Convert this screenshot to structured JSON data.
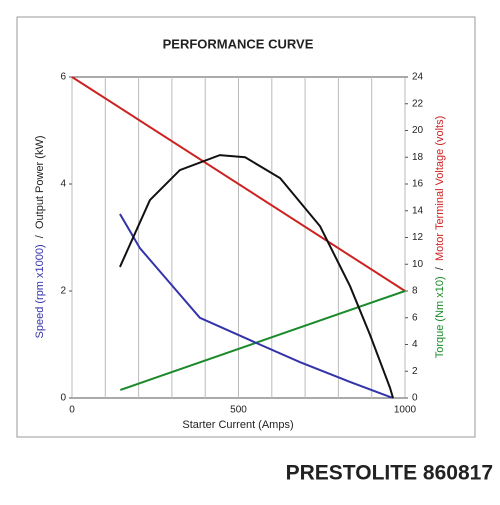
{
  "chart_data": {
    "type": "line",
    "title": "PERFORMANCE CURVE",
    "xlabel": "Starter Current (Amps)",
    "ylabel_parts": [
      {
        "text": "Speed (rpm x1000)",
        "color": "#3333aa"
      },
      {
        "text": "/",
        "color": "#222222"
      },
      {
        "text": "Output Power (kW)",
        "color": "#222222"
      }
    ],
    "y2label_parts": [
      {
        "text": "Torque (Nm x10)",
        "color": "#1a8a2a"
      },
      {
        "text": "/",
        "color": "#222222"
      },
      {
        "text": "Motor Terminal Voltage (volts)",
        "color": "#cc2222"
      }
    ],
    "xlim": [
      0,
      1000
    ],
    "xticks": [
      0,
      500,
      1000
    ],
    "minor_xticks": [
      100,
      200,
      300,
      400,
      600,
      700,
      800,
      900
    ],
    "ylim": [
      0,
      6
    ],
    "yticks": [
      0,
      2,
      4,
      6
    ],
    "y2lim": [
      0,
      24
    ],
    "y2ticks": [
      0,
      2,
      4,
      6,
      8,
      10,
      12,
      14,
      16,
      18,
      20,
      22,
      24
    ],
    "series": [
      {
        "color": "#cc2222",
        "axis": "y2",
        "x": [
          0,
          1000
        ],
        "values": [
          24,
          8
        ]
      },
      {
        "color": "#1a8a2a",
        "axis": "y2",
        "x": [
          145,
          1000
        ],
        "values": [
          0.6,
          8
        ]
      },
      {
        "color": "#3333aa",
        "x": [
          144,
          204,
          294,
          384,
          535,
          685,
          835,
          964
        ],
        "values": [
          3.44,
          2.8,
          2.15,
          1.5,
          1.08,
          0.67,
          0.3,
          0
        ]
      },
      {
        "color": "#111111",
        "x": [
          144,
          234,
          324,
          444,
          520,
          625,
          745,
          835,
          895,
          955,
          964
        ],
        "values": [
          2.45,
          3.7,
          4.26,
          4.54,
          4.5,
          4.11,
          3.21,
          2.09,
          1.18,
          0.19,
          0
        ]
      }
    ]
  },
  "footer": "PRESTOLITE 860817"
}
